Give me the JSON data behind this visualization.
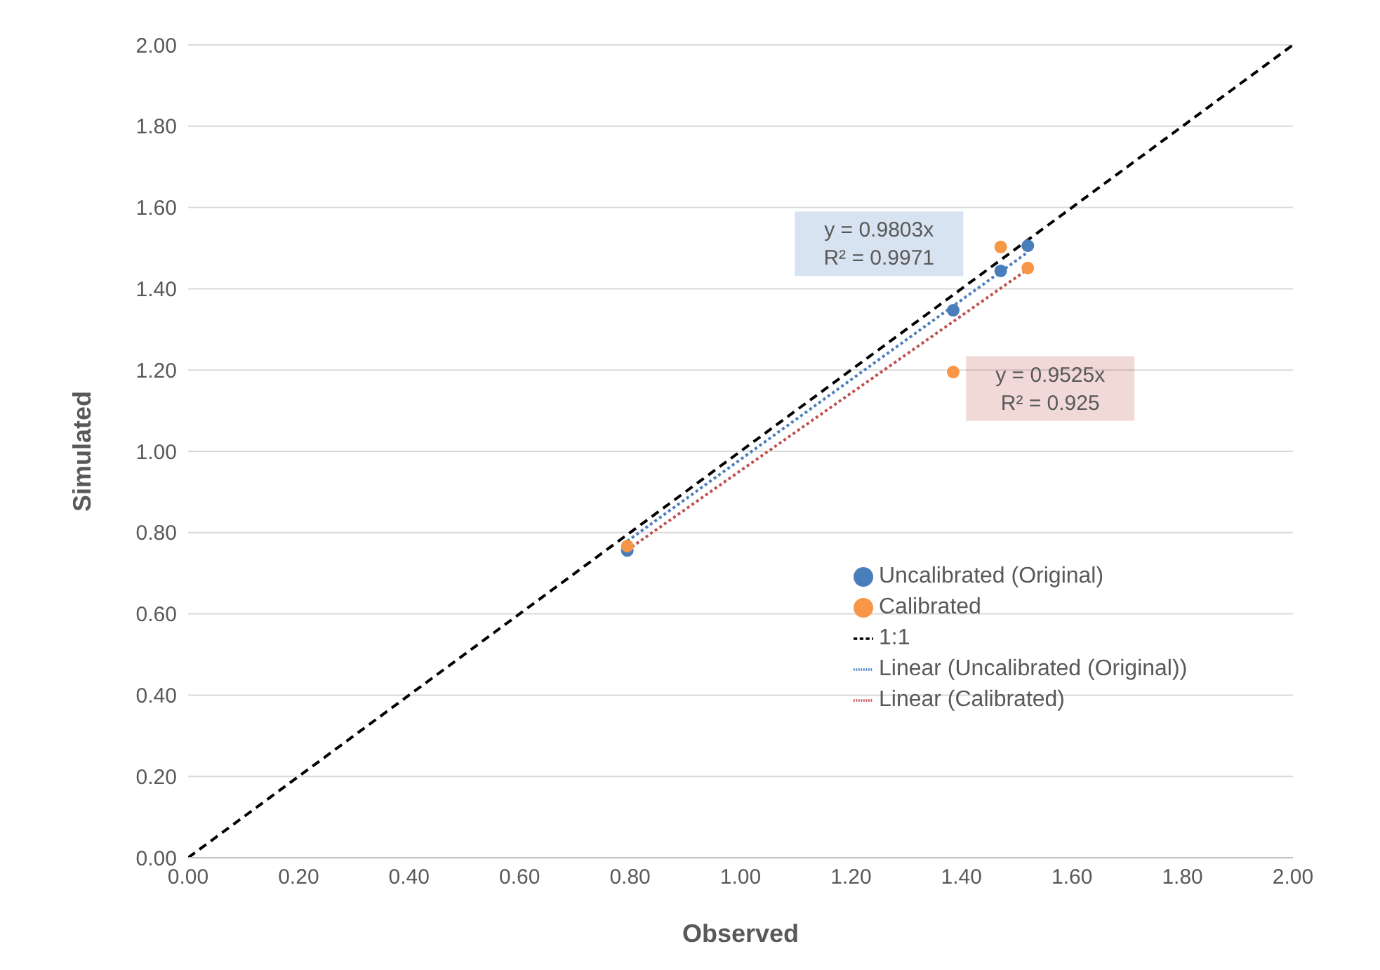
{
  "chart_data": {
    "type": "scatter",
    "xlabel": "Observed",
    "ylabel": "Simulated",
    "xlim": [
      0,
      2
    ],
    "ylim": [
      0,
      2
    ],
    "xticks": [
      {
        "value": 0,
        "label": "0.00"
      },
      {
        "value": 0.2,
        "label": "0.20"
      },
      {
        "value": 0.4,
        "label": "0.40"
      },
      {
        "value": 0.6,
        "label": "0.60"
      },
      {
        "value": 0.8,
        "label": "0.80"
      },
      {
        "value": 1,
        "label": "1.00"
      },
      {
        "value": 1.2,
        "label": "1.20"
      },
      {
        "value": 1.4,
        "label": "1.40"
      },
      {
        "value": 1.6,
        "label": "1.60"
      },
      {
        "value": 1.8,
        "label": "1.80"
      },
      {
        "value": 2,
        "label": "2.00"
      }
    ],
    "yticks": [
      {
        "value": 0,
        "label": "0.00"
      },
      {
        "value": 0.2,
        "label": "0.20"
      },
      {
        "value": 0.4,
        "label": "0.40"
      },
      {
        "value": 0.6,
        "label": "0.60"
      },
      {
        "value": 0.8,
        "label": "0.80"
      },
      {
        "value": 1,
        "label": "1.00"
      },
      {
        "value": 1.2,
        "label": "1.20"
      },
      {
        "value": 1.4,
        "label": "1.40"
      },
      {
        "value": 1.6,
        "label": "1.60"
      },
      {
        "value": 1.8,
        "label": "1.80"
      },
      {
        "value": 2,
        "label": "2.00"
      }
    ],
    "grid": "y",
    "legend": "bottom right",
    "series": [
      {
        "name": "Uncalibrated (Original)",
        "marker": "circle",
        "color": "#4a7ebb",
        "x": [
          0.795,
          1.385,
          1.471,
          1.52
        ],
        "values": [
          0.756,
          1.347,
          1.444,
          1.506
        ]
      },
      {
        "name": "Calibrated",
        "marker": "circle",
        "color": "#f79646",
        "x": [
          0.795,
          1.385,
          1.471,
          1.52
        ],
        "values": [
          0.767,
          1.195,
          1.503,
          1.451
        ]
      },
      {
        "name": "1:1",
        "type": "line",
        "marker": "none",
        "line_style": "dashed",
        "color": "#000000",
        "x": [
          0,
          2
        ],
        "values": [
          0,
          2
        ]
      },
      {
        "name": "Linear (Uncalibrated (Original))",
        "type": "line",
        "marker": "none",
        "line_style": "dotted",
        "color": "#4a7ebb",
        "x": [
          0.795,
          1.52
        ],
        "values": [
          0.779,
          1.49
        ]
      },
      {
        "name": "Linear (Calibrated)",
        "type": "line",
        "marker": "none",
        "line_style": "dotted",
        "color": "#c0504d",
        "x": [
          0.795,
          1.52
        ],
        "values": [
          0.757,
          1.448
        ]
      }
    ],
    "annotations": [
      "y = 0.9803x\nR² = 0.9971",
      "y = 0.9525x\nR² = 0.925"
    ]
  }
}
